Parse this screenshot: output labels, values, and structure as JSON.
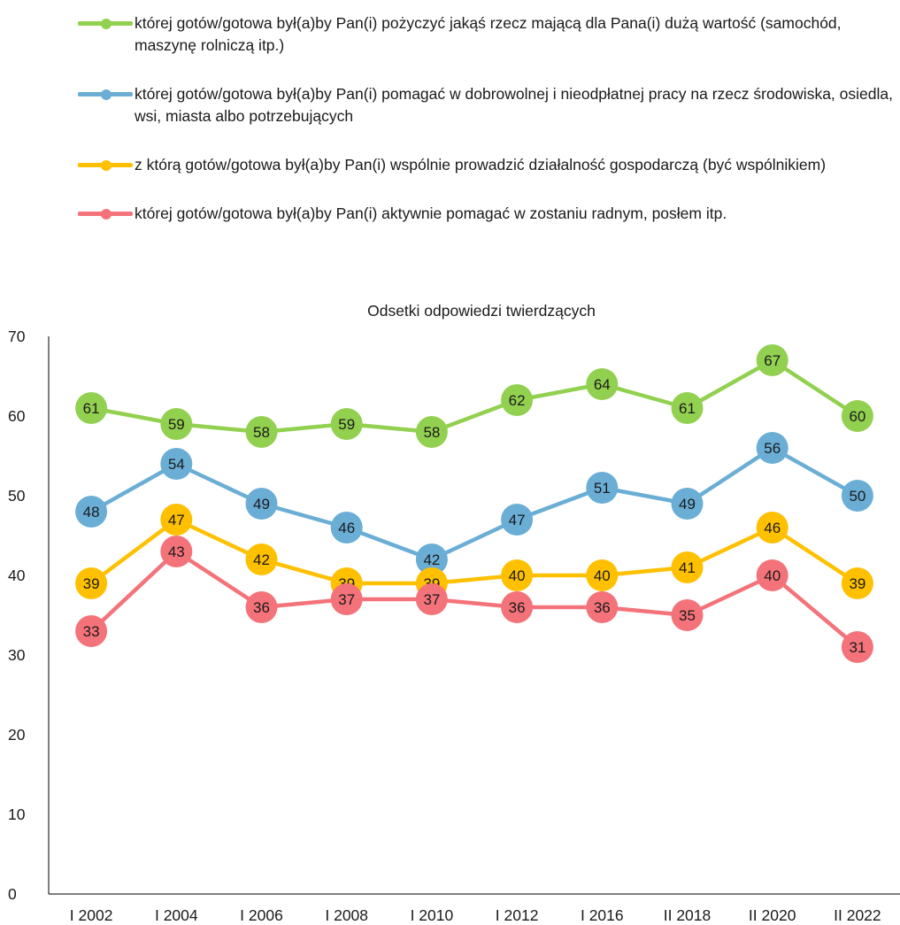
{
  "colors": {
    "green": "#92d050",
    "blue": "#6aaed6",
    "yellow": "#ffc000",
    "red": "#f4737a",
    "axis": "#000000"
  },
  "chart_data": {
    "type": "line",
    "title": "Odsetki odpowiedzi twierdzących",
    "xlabel": "",
    "ylabel": "",
    "ylim": [
      0,
      70
    ],
    "yticks": [
      0,
      10,
      20,
      30,
      40,
      50,
      60,
      70
    ],
    "grid": false,
    "legend_position": "top",
    "categories": [
      "I 2002",
      "I 2004",
      "I 2006",
      "I 2008",
      "I 2010",
      "I 2012",
      "I 2016",
      "II 2018",
      "II 2020",
      "II 2022"
    ],
    "series": [
      {
        "name": "której gotów/gotowa był(a)by Pan(i) pożyczyć jakąś rzecz mającą dla Pana(i) dużą wartość (samochód, maszynę rolniczą itp.)",
        "color": "#92d050",
        "values": [
          61,
          59,
          58,
          59,
          58,
          62,
          64,
          61,
          67,
          60
        ]
      },
      {
        "name": "której gotów/gotowa był(a)by Pan(i) pomagać w dobrowolnej i nieodpłatnej pracy na rzecz środowiska, osiedla, wsi, miasta albo potrzebujących",
        "color": "#6aaed6",
        "values": [
          48,
          54,
          49,
          46,
          42,
          47,
          51,
          49,
          56,
          50
        ]
      },
      {
        "name": "z którą gotów/gotowa był(a)by Pan(i) wspólnie prowadzić działalność gospodarczą (być wspólnikiem)",
        "color": "#ffc000",
        "values": [
          39,
          47,
          42,
          39,
          39,
          40,
          40,
          41,
          46,
          39
        ]
      },
      {
        "name": "której gotów/gotowa był(a)by Pan(i) aktywnie pomagać w zostaniu radnym, posłem itp.",
        "color": "#f4737a",
        "values": [
          33,
          43,
          36,
          37,
          37,
          36,
          36,
          35,
          40,
          31
        ]
      }
    ]
  }
}
